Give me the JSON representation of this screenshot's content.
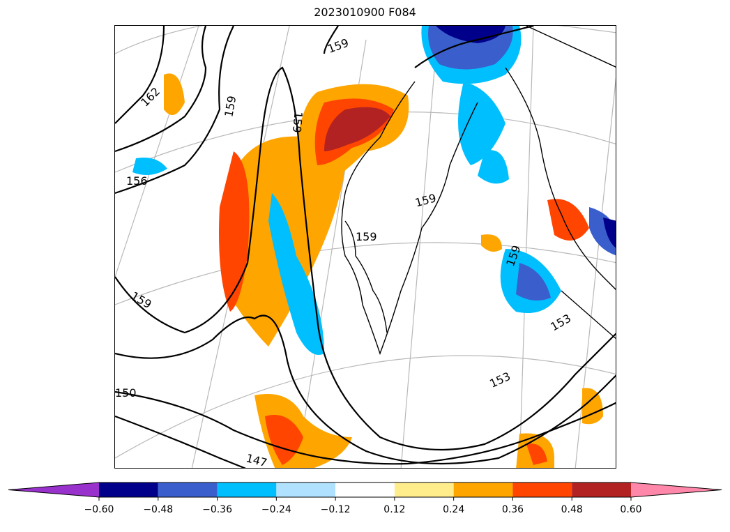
{
  "chart_data": {
    "type": "map",
    "title": "2023010900 F084",
    "contour_labels": [
      "162",
      "159",
      "159",
      "156",
      "159",
      "159",
      "159",
      "159",
      "159",
      "153",
      "153",
      "150",
      "147"
    ],
    "colorbar": {
      "levels": [
        -0.6,
        -0.48,
        -0.36,
        -0.24,
        -0.12,
        0.12,
        0.24,
        0.36,
        0.48,
        0.6
      ],
      "tick_labels": [
        "−0.60",
        "−0.48",
        "−0.36",
        "−0.24",
        "−0.12",
        "0.12",
        "0.24",
        "0.36",
        "0.48",
        "0.60"
      ],
      "colors": [
        "#9932cc",
        "#00008b",
        "#3a5fcd",
        "#00bfff",
        "#b0e2ff",
        "#ffffff",
        "#ffec8b",
        "#ffa500",
        "#ff4500",
        "#b22222",
        "#ff88aa"
      ],
      "extend": "both"
    },
    "grid": true
  }
}
